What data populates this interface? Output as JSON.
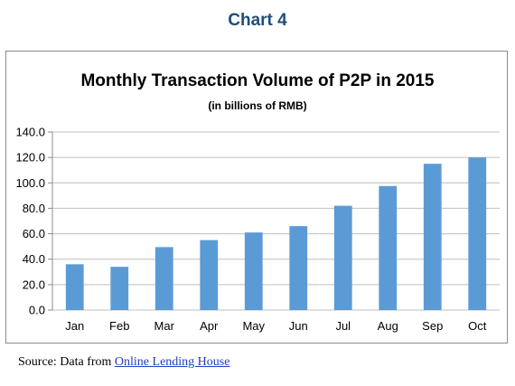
{
  "header": {
    "title": "Chart 4"
  },
  "chart_data": {
    "type": "bar",
    "title": "Monthly Transaction Volume of P2P in 2015",
    "subtitle": "(in billions of RMB)",
    "categories": [
      "Jan",
      "Feb",
      "Mar",
      "Apr",
      "May",
      "Jun",
      "Jul",
      "Aug",
      "Sep",
      "Oct"
    ],
    "values": [
      36.0,
      34.0,
      49.5,
      55.0,
      61.0,
      66.0,
      82.0,
      97.5,
      115.0,
      120.0
    ],
    "ylim": [
      0,
      140
    ],
    "ytick_values": [
      0,
      20,
      40,
      60,
      80,
      100,
      120,
      140
    ],
    "ytick_labels": [
      "0.0",
      "20.0",
      "40.0",
      "60.0",
      "80.0",
      "100.0",
      "120.0",
      "140.0"
    ],
    "xlabel": "",
    "ylabel": "",
    "grid": true,
    "legend": "none",
    "bar_color": "#5b9bd5",
    "grid_color": "#bfbfbf"
  },
  "footer": {
    "source_prefix": "Source: Data from ",
    "source_link": "Online Lending House"
  }
}
